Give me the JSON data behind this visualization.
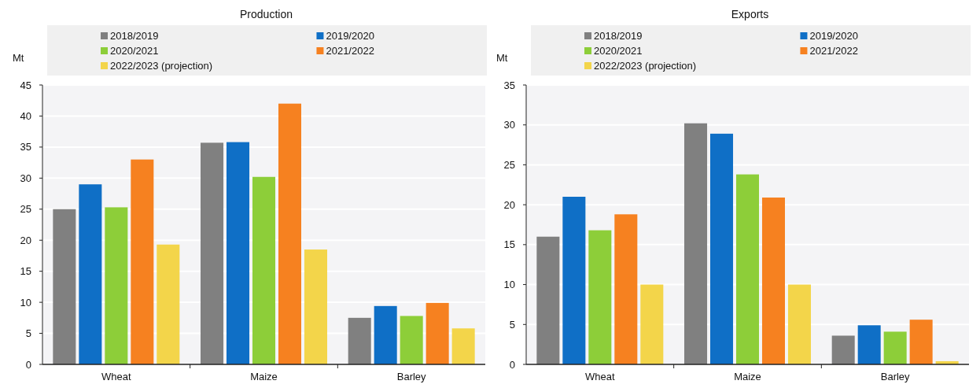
{
  "chart_data": [
    {
      "type": "bar",
      "title": "Production",
      "ylabel": "Mt",
      "categories": [
        "Wheat",
        "Maize",
        "Barley"
      ],
      "series": [
        {
          "name": "2018/2019",
          "color": "#808080",
          "values": [
            25,
            35.7,
            7.5
          ]
        },
        {
          "name": "2019/2020",
          "color": "#0f6fc6",
          "values": [
            29,
            35.8,
            9.4
          ]
        },
        {
          "name": "2020/2021",
          "color": "#8dce39",
          "values": [
            25.3,
            30.2,
            7.8
          ]
        },
        {
          "name": "2021/2022",
          "color": "#f68120",
          "values": [
            33,
            42,
            9.9
          ]
        },
        {
          "name": "2022/2023 (projection)",
          "color": "#f3d54a",
          "values": [
            19.3,
            18.5,
            5.8
          ]
        }
      ],
      "ylim": [
        0,
        45
      ],
      "yticks": [
        0,
        5,
        10,
        15,
        20,
        25,
        30,
        35,
        40,
        45
      ],
      "grid": "y",
      "legend": "top"
    },
    {
      "type": "bar",
      "title": "Exports",
      "ylabel": "Mt",
      "categories": [
        "Wheat",
        "Maize",
        "Barley"
      ],
      "series": [
        {
          "name": "2018/2019",
          "color": "#808080",
          "values": [
            16,
            30.2,
            3.6
          ]
        },
        {
          "name": "2019/2020",
          "color": "#0f6fc6",
          "values": [
            21,
            28.9,
            4.9
          ]
        },
        {
          "name": "2020/2021",
          "color": "#8dce39",
          "values": [
            16.8,
            23.8,
            4.1
          ]
        },
        {
          "name": "2021/2022",
          "color": "#f68120",
          "values": [
            18.8,
            20.9,
            5.6
          ]
        },
        {
          "name": "2022/2023 (projection)",
          "color": "#f3d54a",
          "values": [
            10,
            10,
            0.4
          ]
        }
      ],
      "ylim": [
        0,
        35
      ],
      "yticks": [
        0,
        5,
        10,
        15,
        20,
        25,
        30,
        35
      ],
      "grid": "y",
      "legend": "top"
    }
  ]
}
